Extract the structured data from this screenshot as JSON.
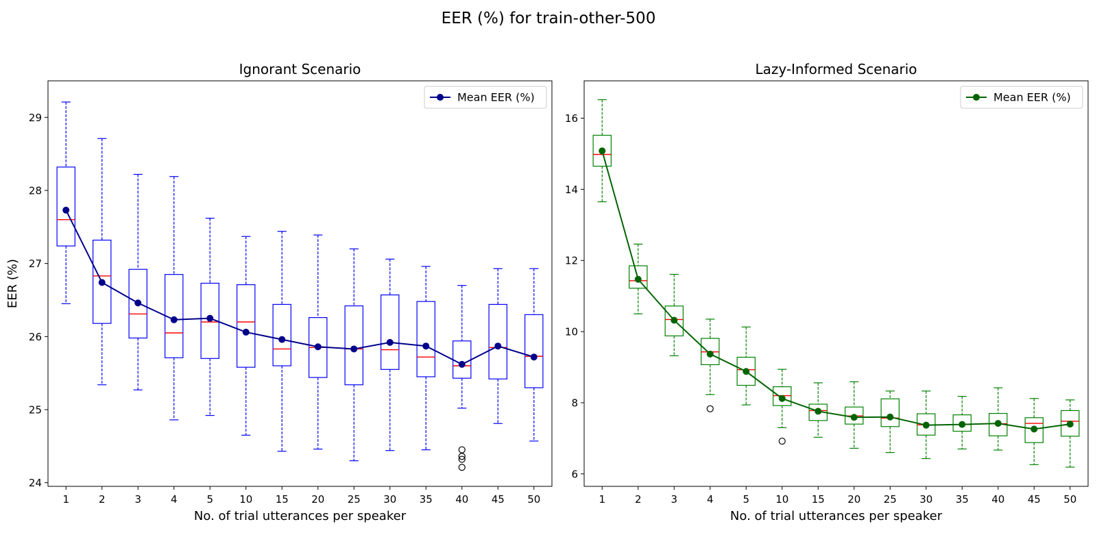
{
  "figure": {
    "suptitle": "EER (%) for train-other-500"
  },
  "chart_data": [
    {
      "type": "box",
      "title": "Ignorant Scenario",
      "xlabel": "No. of trial utterances per speaker",
      "ylabel": "EER (%)",
      "ylim": [
        23.95,
        29.5
      ],
      "yticks": [
        24,
        25,
        26,
        27,
        28,
        29
      ],
      "categories": [
        "1",
        "2",
        "3",
        "4",
        "5",
        "10",
        "15",
        "20",
        "25",
        "30",
        "35",
        "40",
        "45",
        "50"
      ],
      "legend": {
        "label": "Mean EER (%)",
        "position": "upper right"
      },
      "colors": {
        "box": "#0000ff",
        "median": "#ff0000",
        "mean": "#00008b",
        "flier": "#000000"
      },
      "series": [
        {
          "name": "Mean EER (%)",
          "boxes": [
            {
              "whislo": 26.45,
              "q1": 27.24,
              "med": 27.6,
              "q3": 28.32,
              "whishi": 29.21,
              "fliers": []
            },
            {
              "whislo": 25.34,
              "q1": 26.18,
              "med": 26.83,
              "q3": 27.32,
              "whishi": 28.71,
              "fliers": []
            },
            {
              "whislo": 25.27,
              "q1": 25.98,
              "med": 26.31,
              "q3": 26.92,
              "whishi": 28.22,
              "fliers": []
            },
            {
              "whislo": 24.86,
              "q1": 25.71,
              "med": 26.05,
              "q3": 26.85,
              "whishi": 28.19,
              "fliers": []
            },
            {
              "whislo": 24.92,
              "q1": 25.7,
              "med": 26.2,
              "q3": 26.73,
              "whishi": 27.62,
              "fliers": []
            },
            {
              "whislo": 24.65,
              "q1": 25.58,
              "med": 26.2,
              "q3": 26.71,
              "whishi": 27.37,
              "fliers": []
            },
            {
              "whislo": 24.43,
              "q1": 25.6,
              "med": 25.83,
              "q3": 26.44,
              "whishi": 27.44,
              "fliers": []
            },
            {
              "whislo": 24.46,
              "q1": 25.44,
              "med": 25.85,
              "q3": 26.26,
              "whishi": 27.39,
              "fliers": []
            },
            {
              "whislo": 24.3,
              "q1": 25.34,
              "med": 25.83,
              "q3": 26.42,
              "whishi": 27.2,
              "fliers": []
            },
            {
              "whislo": 24.44,
              "q1": 25.55,
              "med": 25.82,
              "q3": 26.57,
              "whishi": 27.06,
              "fliers": []
            },
            {
              "whislo": 24.45,
              "q1": 25.45,
              "med": 25.72,
              "q3": 26.48,
              "whishi": 26.96,
              "fliers": []
            },
            {
              "whislo": 25.02,
              "q1": 25.43,
              "med": 25.6,
              "q3": 25.94,
              "whishi": 26.7,
              "fliers": [
                24.45,
                24.36,
                24.32,
                24.21
              ]
            },
            {
              "whislo": 24.81,
              "q1": 25.42,
              "med": 25.85,
              "q3": 26.44,
              "whishi": 26.93,
              "fliers": []
            },
            {
              "whislo": 24.57,
              "q1": 25.3,
              "med": 25.73,
              "q3": 26.3,
              "whishi": 26.93,
              "fliers": []
            }
          ],
          "mean": [
            27.73,
            26.74,
            26.46,
            26.23,
            26.25,
            26.06,
            25.96,
            25.86,
            25.83,
            25.92,
            25.87,
            25.62,
            25.87,
            25.72
          ]
        }
      ]
    },
    {
      "type": "box",
      "title": "Lazy-Informed Scenario",
      "xlabel": "No. of trial utterances per speaker",
      "ylabel": "",
      "ylim": [
        5.65,
        17.05
      ],
      "yticks": [
        6,
        8,
        10,
        12,
        14,
        16
      ],
      "categories": [
        "1",
        "2",
        "3",
        "4",
        "5",
        "10",
        "15",
        "20",
        "25",
        "30",
        "35",
        "40",
        "45",
        "50"
      ],
      "legend": {
        "label": "Mean EER (%)",
        "position": "upper right"
      },
      "colors": {
        "box": "#008000",
        "median": "#ff0000",
        "mean": "#006400",
        "flier": "#000000"
      },
      "series": [
        {
          "name": "Mean EER (%)",
          "boxes": [
            {
              "whislo": 13.65,
              "q1": 14.65,
              "med": 14.98,
              "q3": 15.52,
              "whishi": 16.52,
              "fliers": []
            },
            {
              "whislo": 10.5,
              "q1": 11.22,
              "med": 11.43,
              "q3": 11.85,
              "whishi": 12.46,
              "fliers": []
            },
            {
              "whislo": 9.32,
              "q1": 9.88,
              "med": 10.34,
              "q3": 10.72,
              "whishi": 11.61,
              "fliers": []
            },
            {
              "whislo": 8.23,
              "q1": 9.07,
              "med": 9.43,
              "q3": 9.81,
              "whishi": 10.35,
              "fliers": [
                7.83
              ]
            },
            {
              "whislo": 7.94,
              "q1": 8.49,
              "med": 8.93,
              "q3": 9.28,
              "whishi": 10.13,
              "fliers": []
            },
            {
              "whislo": 7.3,
              "q1": 7.92,
              "med": 8.2,
              "q3": 8.45,
              "whishi": 8.94,
              "fliers": [
                6.92
              ]
            },
            {
              "whislo": 7.03,
              "q1": 7.5,
              "med": 7.78,
              "q3": 7.96,
              "whishi": 8.56,
              "fliers": []
            },
            {
              "whislo": 6.72,
              "q1": 7.4,
              "med": 7.63,
              "q3": 7.88,
              "whishi": 8.59,
              "fliers": []
            },
            {
              "whislo": 6.6,
              "q1": 7.33,
              "med": 7.57,
              "q3": 8.11,
              "whishi": 8.33,
              "fliers": []
            },
            {
              "whislo": 6.43,
              "q1": 7.09,
              "med": 7.38,
              "q3": 7.69,
              "whishi": 8.33,
              "fliers": []
            },
            {
              "whislo": 6.7,
              "q1": 7.2,
              "med": 7.39,
              "q3": 7.66,
              "whishi": 8.18,
              "fliers": []
            },
            {
              "whislo": 6.67,
              "q1": 7.07,
              "med": 7.41,
              "q3": 7.7,
              "whishi": 8.42,
              "fliers": []
            },
            {
              "whislo": 6.26,
              "q1": 6.88,
              "med": 7.42,
              "q3": 7.58,
              "whishi": 8.12,
              "fliers": []
            },
            {
              "whislo": 6.19,
              "q1": 7.06,
              "med": 7.48,
              "q3": 7.78,
              "whishi": 8.08,
              "fliers": []
            }
          ],
          "mean": [
            15.08,
            11.47,
            10.32,
            9.37,
            8.88,
            8.12,
            7.76,
            7.59,
            7.6,
            7.37,
            7.39,
            7.42,
            7.26,
            7.4
          ]
        }
      ]
    }
  ]
}
